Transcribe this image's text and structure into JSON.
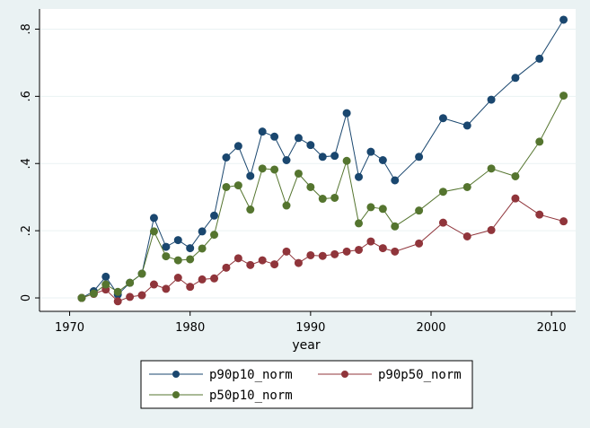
{
  "chart_data": {
    "type": "line",
    "xlabel": "year",
    "ylabel": "",
    "xlim": [
      1967.5,
      2012
    ],
    "ylim": [
      -0.04,
      0.86
    ],
    "xticks": [
      1970,
      1980,
      1990,
      2000,
      2010
    ],
    "yticks": [
      0,
      0.2,
      0.4,
      0.6,
      0.8
    ],
    "yticklabels": [
      "0",
      ".2",
      ".4",
      ".6",
      ".8"
    ],
    "grid": true,
    "legend_position": "bottom",
    "series": [
      {
        "name": "p90p10_norm",
        "color": "#1a476f",
        "x": [
          1971,
          1972,
          1973,
          1974,
          1975,
          1976,
          1977,
          1978,
          1979,
          1980,
          1981,
          1982,
          1983,
          1984,
          1985,
          1986,
          1987,
          1988,
          1989,
          1990,
          1991,
          1992,
          1993,
          1994,
          1995,
          1996,
          1997,
          1999,
          2001,
          2003,
          2005,
          2007,
          2009,
          2011
        ],
        "y": [
          0.0,
          0.02,
          0.063,
          0.01,
          0.045,
          0.072,
          0.238,
          0.152,
          0.172,
          0.148,
          0.198,
          0.245,
          0.418,
          0.452,
          0.363,
          0.495,
          0.48,
          0.41,
          0.476,
          0.455,
          0.42,
          0.423,
          0.55,
          0.36,
          0.435,
          0.41,
          0.35,
          0.42,
          0.535,
          0.513,
          0.59,
          0.655,
          0.712,
          0.828
        ]
      },
      {
        "name": "p90p50_norm",
        "color": "#90353b",
        "x": [
          1971,
          1972,
          1973,
          1974,
          1975,
          1976,
          1977,
          1978,
          1979,
          1980,
          1981,
          1982,
          1983,
          1984,
          1985,
          1986,
          1987,
          1988,
          1989,
          1990,
          1991,
          1992,
          1993,
          1994,
          1995,
          1996,
          1997,
          1999,
          2001,
          2003,
          2005,
          2007,
          2009,
          2011
        ],
        "y": [
          0.0,
          0.012,
          0.025,
          -0.01,
          0.003,
          0.008,
          0.04,
          0.027,
          0.06,
          0.033,
          0.055,
          0.058,
          0.09,
          0.118,
          0.098,
          0.112,
          0.1,
          0.138,
          0.104,
          0.127,
          0.125,
          0.13,
          0.138,
          0.143,
          0.168,
          0.148,
          0.138,
          0.162,
          0.224,
          0.183,
          0.202,
          0.296,
          0.248,
          0.228
        ]
      },
      {
        "name": "p50p10_norm",
        "color": "#55752f",
        "x": [
          1971,
          1972,
          1973,
          1974,
          1975,
          1976,
          1977,
          1978,
          1979,
          1980,
          1981,
          1982,
          1983,
          1984,
          1985,
          1986,
          1987,
          1988,
          1989,
          1990,
          1991,
          1992,
          1993,
          1994,
          1995,
          1996,
          1997,
          1999,
          2001,
          2003,
          2005,
          2007,
          2009,
          2011
        ],
        "y": [
          0.0,
          0.013,
          0.04,
          0.018,
          0.045,
          0.072,
          0.198,
          0.124,
          0.112,
          0.115,
          0.147,
          0.188,
          0.33,
          0.335,
          0.263,
          0.385,
          0.382,
          0.275,
          0.37,
          0.33,
          0.295,
          0.298,
          0.408,
          0.222,
          0.27,
          0.265,
          0.213,
          0.26,
          0.316,
          0.33,
          0.385,
          0.362,
          0.465,
          0.602
        ]
      }
    ]
  }
}
